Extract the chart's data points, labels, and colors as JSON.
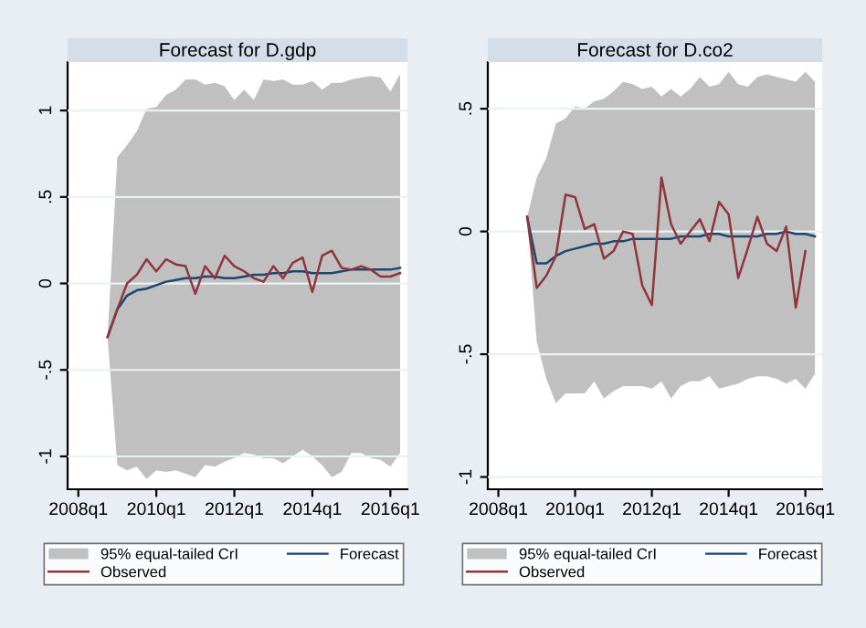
{
  "chart_data": [
    {
      "type": "line",
      "title": "Forecast for D.gdp",
      "grid": "y",
      "legend": "bottom",
      "annotations": [
        "95% equal-tailed CrI"
      ],
      "categories": [
        "2008q1",
        null,
        null,
        null,
        null,
        null,
        null,
        null,
        "2010q1",
        null,
        null,
        null,
        null,
        null,
        null,
        null,
        "2012q1",
        null,
        null,
        null,
        null,
        null,
        null,
        null,
        "2014q1",
        null,
        null,
        null,
        null,
        null,
        null,
        null,
        "2016q1",
        null
      ],
      "ylim": [
        -1.19,
        1.28
      ],
      "yticks": [
        {
          "value": -1,
          "label": "-1"
        },
        {
          "value": -0.5,
          "label": "-.5"
        },
        {
          "value": 0,
          "label": "0"
        },
        {
          "value": 0.5,
          "label": ".5"
        },
        {
          "value": 1,
          "label": "1"
        }
      ],
      "series": [
        {
          "name": "Forecast",
          "color": "#1a476f",
          "values": [
            null,
            null,
            null,
            -0.31,
            -0.15,
            -0.07,
            -0.04,
            -0.03,
            -0.01,
            0.01,
            0.02,
            0.03,
            0.03,
            0.04,
            0.04,
            0.03,
            0.03,
            0.04,
            0.05,
            0.05,
            0.06,
            0.06,
            0.07,
            0.07,
            0.06,
            0.06,
            0.06,
            0.07,
            0.08,
            0.08,
            0.08,
            0.08,
            0.08,
            0.09
          ],
          "upper": [
            null,
            null,
            null,
            -0.31,
            0.73,
            0.8,
            0.88,
            1.01,
            1.02,
            1.09,
            1.12,
            1.18,
            1.18,
            1.15,
            1.16,
            1.14,
            1.06,
            1.12,
            1.06,
            1.18,
            1.17,
            1.18,
            1.15,
            1.15,
            1.17,
            1.12,
            1.16,
            1.16,
            1.18,
            1.19,
            1.2,
            1.19,
            1.11,
            1.21
          ],
          "lower": [
            null,
            null,
            null,
            -0.31,
            -1.05,
            -1.08,
            -1.06,
            -1.13,
            -1.08,
            -1.09,
            -1.08,
            -1.1,
            -1.12,
            -1.05,
            -1.06,
            -1.03,
            -1.01,
            -0.98,
            -0.99,
            -1.01,
            -1.01,
            -1.04,
            -1.0,
            -0.96,
            -1.0,
            -1.05,
            -1.12,
            -1.09,
            -0.98,
            -0.98,
            -1.01,
            -1.02,
            -1.06,
            -0.98
          ]
        },
        {
          "name": "Observed",
          "color": "#90353b",
          "values": [
            null,
            null,
            null,
            -0.31,
            -0.15,
            0.0,
            0.05,
            0.14,
            0.07,
            0.14,
            0.11,
            0.1,
            -0.06,
            0.1,
            0.03,
            0.16,
            0.1,
            0.07,
            0.03,
            0.01,
            0.1,
            0.03,
            0.12,
            0.15,
            -0.05,
            0.16,
            0.19,
            0.09,
            0.08,
            0.1,
            0.08,
            0.04,
            0.04,
            0.06
          ]
        }
      ]
    },
    {
      "type": "line",
      "title": "Forecast for D.co2",
      "grid": "y",
      "legend": "bottom",
      "annotations": [
        "95% equal-tailed CrI"
      ],
      "categories": [
        "2008q1",
        null,
        null,
        null,
        null,
        null,
        null,
        null,
        "2010q1",
        null,
        null,
        null,
        null,
        null,
        null,
        null,
        "2012q1",
        null,
        null,
        null,
        null,
        null,
        null,
        null,
        "2014q1",
        null,
        null,
        null,
        null,
        null,
        null,
        null,
        "2016q1",
        null
      ],
      "ylim": [
        -1.05,
        0.69
      ],
      "yticks": [
        {
          "value": -1,
          "label": "-1"
        },
        {
          "value": -0.5,
          "label": "-.5"
        },
        {
          "value": 0,
          "label": "0"
        },
        {
          "value": 0.5,
          "label": ".5"
        }
      ],
      "series": [
        {
          "name": "Forecast",
          "color": "#1a476f",
          "values": [
            null,
            null,
            null,
            0.06,
            -0.13,
            -0.13,
            -0.1,
            -0.08,
            -0.07,
            -0.06,
            -0.05,
            -0.05,
            -0.04,
            -0.04,
            -0.03,
            -0.03,
            -0.03,
            -0.03,
            -0.03,
            -0.02,
            -0.02,
            -0.02,
            -0.01,
            -0.01,
            -0.02,
            -0.02,
            -0.02,
            -0.02,
            -0.01,
            -0.01,
            0.0,
            -0.01,
            -0.01,
            -0.02
          ],
          "upper": [
            null,
            null,
            null,
            0.06,
            0.22,
            0.3,
            0.44,
            0.46,
            0.51,
            0.5,
            0.53,
            0.54,
            0.57,
            0.61,
            0.6,
            0.58,
            0.59,
            0.55,
            0.58,
            0.55,
            0.58,
            0.63,
            0.59,
            0.6,
            0.65,
            0.6,
            0.59,
            0.63,
            0.64,
            0.63,
            0.62,
            0.61,
            0.65,
            0.61
          ],
          "lower": [
            null,
            null,
            null,
            0.06,
            -0.45,
            -0.6,
            -0.7,
            -0.66,
            -0.66,
            -0.66,
            -0.61,
            -0.68,
            -0.65,
            -0.63,
            -0.63,
            -0.63,
            -0.64,
            -0.61,
            -0.68,
            -0.63,
            -0.61,
            -0.61,
            -0.59,
            -0.64,
            -0.63,
            -0.62,
            -0.6,
            -0.59,
            -0.59,
            -0.6,
            -0.62,
            -0.6,
            -0.64,
            -0.58
          ]
        },
        {
          "name": "Observed",
          "color": "#90353b",
          "values": [
            null,
            null,
            null,
            0.06,
            -0.23,
            -0.18,
            -0.1,
            0.15,
            0.14,
            0.01,
            0.03,
            -0.11,
            -0.08,
            0.0,
            -0.01,
            -0.22,
            -0.3,
            0.22,
            0.03,
            -0.05,
            0.0,
            0.05,
            -0.04,
            0.12,
            0.07,
            -0.19,
            -0.07,
            0.06,
            -0.05,
            -0.08,
            0.02,
            -0.31,
            -0.08,
            null
          ]
        }
      ]
    }
  ]
}
